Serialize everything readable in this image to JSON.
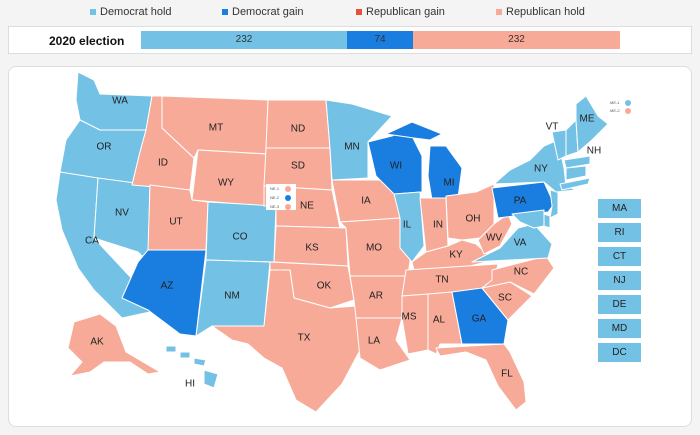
{
  "colors": {
    "dem_hold": "#74c1e6",
    "dem_gain": "#1a7ee0",
    "rep_gain": "#e8503a",
    "rep_hold": "#f7aa98"
  },
  "legend": [
    {
      "label": "Democrat hold",
      "color": "#74c1e6"
    },
    {
      "label": "Democrat gain",
      "color": "#1a7ee0"
    },
    {
      "label": "Republican gain",
      "color": "#e8503a"
    },
    {
      "label": "Republican hold",
      "color": "#f7aa98"
    }
  ],
  "summary": {
    "title": "2020 election",
    "dem_hold": "232",
    "dem_gain": "74",
    "rep_hold": "232"
  },
  "states": {
    "WA": "WA",
    "OR": "OR",
    "CA": "CA",
    "NV": "NV",
    "ID": "ID",
    "MT": "MT",
    "WY": "WY",
    "UT": "UT",
    "AZ": "AZ",
    "CO": "CO",
    "NM": "NM",
    "ND": "ND",
    "SD": "SD",
    "NE": "NE",
    "KS": "KS",
    "OK": "OK",
    "TX": "TX",
    "MN": "MN",
    "IA": "IA",
    "MO": "MO",
    "AR": "AR",
    "LA": "LA",
    "WI": "WI",
    "IL": "IL",
    "MI": "MI",
    "IN": "IN",
    "OH": "OH",
    "KY": "KY",
    "TN": "TN",
    "MS": "MS",
    "AL": "AL",
    "GA": "GA",
    "FL": "FL",
    "SC": "SC",
    "NC": "NC",
    "VA": "VA",
    "WV": "WV",
    "PA": "PA",
    "NY": "NY",
    "VT": "VT",
    "NH": "NH",
    "ME": "ME",
    "AK": "AK",
    "HI": "HI"
  },
  "small_states": [
    "MA",
    "RI",
    "CT",
    "NJ",
    "DE",
    "MD",
    "DC"
  ],
  "districts": {
    "ne1": "NE-1",
    "ne2": "NE-2",
    "ne3": "NE-3",
    "me1": "ME-1",
    "me2": "ME-2"
  }
}
